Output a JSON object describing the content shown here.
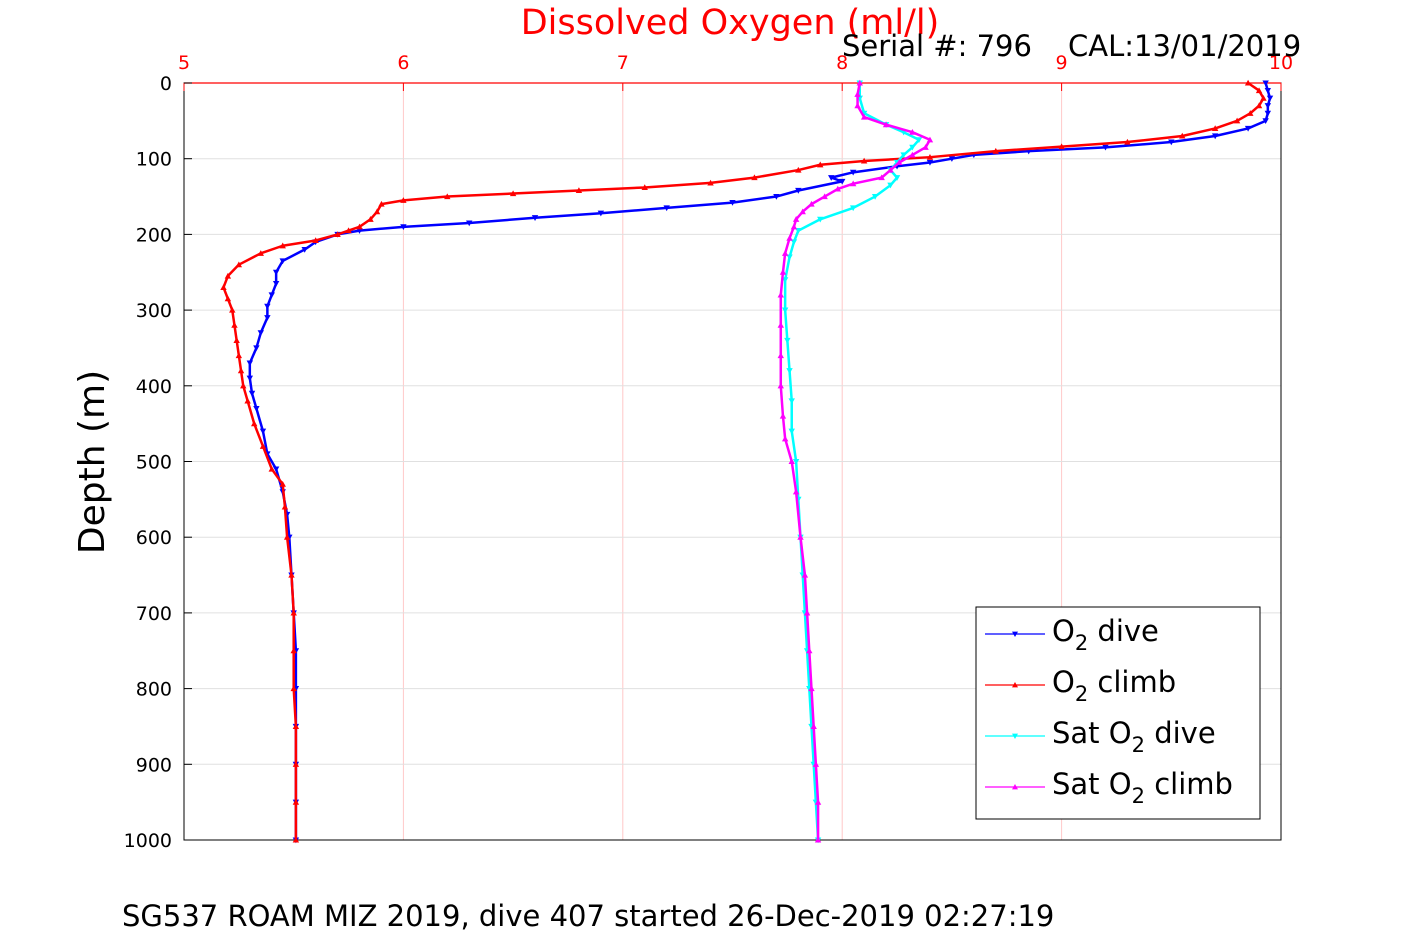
{
  "chart_data": {
    "type": "scatter",
    "title": "Dissolved Oxygen (ml/l)",
    "serial": "Serial #: 796",
    "cal": "CAL:13/01/2019",
    "caption": "SG537 ROAM MIZ 2019, dive 407 started 26-Dec-2019 02:27:19",
    "xlabel": "",
    "ylabel": "Depth (m)",
    "xlim": [
      5,
      10
    ],
    "ylim": [
      0,
      1000
    ],
    "y_reversed": true,
    "x_axis_position": "top",
    "xticks": [
      "5",
      "6",
      "7",
      "8",
      "9",
      "10"
    ],
    "yticks": [
      "0",
      "100",
      "200",
      "300",
      "400",
      "500",
      "600",
      "700",
      "800",
      "900",
      "1000"
    ],
    "grid": true,
    "legend_position": "bottom-right",
    "colors": {
      "title": "#ff0000",
      "x_ticks": "#ff0000",
      "x_grid": "#ffc8c8",
      "y_grid": "#e0e0e0"
    },
    "series": [
      {
        "name": "O2 dive",
        "legend": {
          "pre": "O",
          "sub": "2",
          "post": " dive"
        },
        "color": "#0000ff",
        "marker": "triangle-down",
        "points": [
          [
            9.93,
            0
          ],
          [
            9.94,
            10
          ],
          [
            9.95,
            20
          ],
          [
            9.94,
            30
          ],
          [
            9.94,
            40
          ],
          [
            9.93,
            50
          ],
          [
            9.85,
            60
          ],
          [
            9.7,
            70
          ],
          [
            9.5,
            78
          ],
          [
            9.2,
            85
          ],
          [
            8.85,
            90
          ],
          [
            8.6,
            95
          ],
          [
            8.5,
            100
          ],
          [
            8.4,
            105
          ],
          [
            8.25,
            110
          ],
          [
            8.05,
            118
          ],
          [
            7.95,
            125
          ],
          [
            8.0,
            130
          ],
          [
            7.8,
            142
          ],
          [
            7.7,
            150
          ],
          [
            7.5,
            158
          ],
          [
            7.2,
            165
          ],
          [
            6.9,
            172
          ],
          [
            6.6,
            178
          ],
          [
            6.3,
            185
          ],
          [
            6.0,
            190
          ],
          [
            5.8,
            195
          ],
          [
            5.7,
            200
          ],
          [
            5.6,
            210
          ],
          [
            5.55,
            220
          ],
          [
            5.45,
            235
          ],
          [
            5.42,
            250
          ],
          [
            5.42,
            265
          ],
          [
            5.4,
            280
          ],
          [
            5.38,
            295
          ],
          [
            5.38,
            310
          ],
          [
            5.35,
            330
          ],
          [
            5.33,
            350
          ],
          [
            5.3,
            370
          ],
          [
            5.3,
            390
          ],
          [
            5.31,
            410
          ],
          [
            5.33,
            430
          ],
          [
            5.36,
            460
          ],
          [
            5.38,
            490
          ],
          [
            5.42,
            510
          ],
          [
            5.45,
            540
          ],
          [
            5.47,
            570
          ],
          [
            5.48,
            600
          ],
          [
            5.49,
            650
          ],
          [
            5.5,
            700
          ],
          [
            5.51,
            750
          ],
          [
            5.51,
            800
          ],
          [
            5.51,
            850
          ],
          [
            5.51,
            900
          ],
          [
            5.51,
            950
          ],
          [
            5.51,
            1000
          ]
        ]
      },
      {
        "name": "O2 climb",
        "legend": {
          "pre": "O",
          "sub": "2",
          "post": " climb"
        },
        "color": "#ff0000",
        "marker": "triangle-up",
        "points": [
          [
            9.85,
            0
          ],
          [
            9.9,
            10
          ],
          [
            9.92,
            20
          ],
          [
            9.9,
            30
          ],
          [
            9.86,
            40
          ],
          [
            9.8,
            50
          ],
          [
            9.7,
            60
          ],
          [
            9.55,
            70
          ],
          [
            9.3,
            78
          ],
          [
            9.0,
            84
          ],
          [
            8.7,
            90
          ],
          [
            8.4,
            98
          ],
          [
            8.1,
            103
          ],
          [
            7.9,
            108
          ],
          [
            7.8,
            115
          ],
          [
            7.6,
            125
          ],
          [
            7.4,
            132
          ],
          [
            7.1,
            138
          ],
          [
            6.8,
            142
          ],
          [
            6.5,
            146
          ],
          [
            6.2,
            150
          ],
          [
            6.0,
            155
          ],
          [
            5.9,
            160
          ],
          [
            5.88,
            170
          ],
          [
            5.85,
            180
          ],
          [
            5.8,
            190
          ],
          [
            5.75,
            195
          ],
          [
            5.7,
            200
          ],
          [
            5.6,
            208
          ],
          [
            5.45,
            215
          ],
          [
            5.35,
            225
          ],
          [
            5.25,
            240
          ],
          [
            5.2,
            255
          ],
          [
            5.18,
            270
          ],
          [
            5.2,
            285
          ],
          [
            5.22,
            300
          ],
          [
            5.23,
            320
          ],
          [
            5.24,
            340
          ],
          [
            5.25,
            360
          ],
          [
            5.26,
            380
          ],
          [
            5.27,
            400
          ],
          [
            5.29,
            420
          ],
          [
            5.32,
            450
          ],
          [
            5.36,
            480
          ],
          [
            5.4,
            510
          ],
          [
            5.45,
            530
          ],
          [
            5.46,
            560
          ],
          [
            5.47,
            600
          ],
          [
            5.49,
            650
          ],
          [
            5.5,
            700
          ],
          [
            5.5,
            750
          ],
          [
            5.5,
            800
          ],
          [
            5.51,
            850
          ],
          [
            5.51,
            900
          ],
          [
            5.51,
            950
          ],
          [
            5.51,
            1000
          ]
        ]
      },
      {
        "name": "Sat O2 dive",
        "legend": {
          "pre": "Sat O",
          "sub": "2",
          "post": " dive"
        },
        "color": "#00ffff",
        "marker": "triangle-down",
        "points": [
          [
            8.08,
            0
          ],
          [
            8.08,
            20
          ],
          [
            8.1,
            40
          ],
          [
            8.2,
            55
          ],
          [
            8.28,
            65
          ],
          [
            8.35,
            75
          ],
          [
            8.32,
            85
          ],
          [
            8.28,
            95
          ],
          [
            8.25,
            105
          ],
          [
            8.22,
            115
          ],
          [
            8.25,
            125
          ],
          [
            8.22,
            135
          ],
          [
            8.15,
            150
          ],
          [
            8.05,
            165
          ],
          [
            7.9,
            180
          ],
          [
            7.8,
            195
          ],
          [
            7.78,
            210
          ],
          [
            7.76,
            230
          ],
          [
            7.74,
            260
          ],
          [
            7.74,
            300
          ],
          [
            7.75,
            340
          ],
          [
            7.76,
            380
          ],
          [
            7.77,
            420
          ],
          [
            7.77,
            460
          ],
          [
            7.79,
            500
          ],
          [
            7.8,
            550
          ],
          [
            7.81,
            600
          ],
          [
            7.82,
            650
          ],
          [
            7.83,
            700
          ],
          [
            7.84,
            750
          ],
          [
            7.85,
            800
          ],
          [
            7.86,
            850
          ],
          [
            7.87,
            900
          ],
          [
            7.88,
            950
          ],
          [
            7.89,
            1000
          ]
        ]
      },
      {
        "name": "Sat O2 climb",
        "legend": {
          "pre": "Sat O",
          "sub": "2",
          "post": " climb"
        },
        "color": "#ff00ff",
        "marker": "triangle-up",
        "points": [
          [
            8.08,
            0
          ],
          [
            8.07,
            15
          ],
          [
            8.07,
            30
          ],
          [
            8.1,
            45
          ],
          [
            8.2,
            55
          ],
          [
            8.32,
            65
          ],
          [
            8.4,
            75
          ],
          [
            8.38,
            85
          ],
          [
            8.32,
            95
          ],
          [
            8.26,
            105
          ],
          [
            8.22,
            115
          ],
          [
            8.18,
            125
          ],
          [
            8.05,
            133
          ],
          [
            7.98,
            140
          ],
          [
            7.92,
            150
          ],
          [
            7.86,
            160
          ],
          [
            7.82,
            170
          ],
          [
            7.79,
            180
          ],
          [
            7.78,
            190
          ],
          [
            7.76,
            205
          ],
          [
            7.74,
            225
          ],
          [
            7.73,
            250
          ],
          [
            7.72,
            280
          ],
          [
            7.72,
            320
          ],
          [
            7.72,
            360
          ],
          [
            7.72,
            400
          ],
          [
            7.73,
            440
          ],
          [
            7.74,
            470
          ],
          [
            7.77,
            500
          ],
          [
            7.79,
            540
          ],
          [
            7.81,
            600
          ],
          [
            7.83,
            650
          ],
          [
            7.84,
            700
          ],
          [
            7.85,
            750
          ],
          [
            7.86,
            800
          ],
          [
            7.87,
            850
          ],
          [
            7.88,
            900
          ],
          [
            7.89,
            950
          ],
          [
            7.89,
            1000
          ]
        ]
      }
    ]
  }
}
